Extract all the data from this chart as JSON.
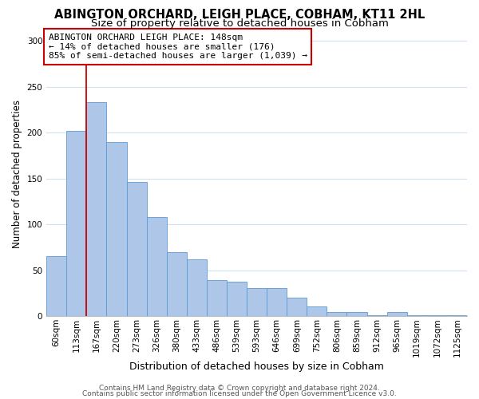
{
  "title1": "ABINGTON ORCHARD, LEIGH PLACE, COBHAM, KT11 2HL",
  "title2": "Size of property relative to detached houses in Cobham",
  "xlabel": "Distribution of detached houses by size in Cobham",
  "ylabel": "Number of detached properties",
  "bar_labels": [
    "60sqm",
    "113sqm",
    "167sqm",
    "220sqm",
    "273sqm",
    "326sqm",
    "380sqm",
    "433sqm",
    "486sqm",
    "539sqm",
    "593sqm",
    "646sqm",
    "699sqm",
    "752sqm",
    "806sqm",
    "859sqm",
    "912sqm",
    "965sqm",
    "1019sqm",
    "1072sqm",
    "1125sqm"
  ],
  "bar_values": [
    65,
    202,
    233,
    190,
    146,
    108,
    70,
    62,
    39,
    37,
    30,
    30,
    20,
    10,
    4,
    4,
    1,
    4,
    1,
    1,
    1
  ],
  "bar_color": "#aec6e8",
  "bar_edge_color": "#5a9bd5",
  "vline_x_idx": 2,
  "vline_color": "#cc0000",
  "annotation_line1": "ABINGTON ORCHARD LEIGH PLACE: 148sqm",
  "annotation_line2": "← 14% of detached houses are smaller (176)",
  "annotation_line3": "85% of semi-detached houses are larger (1,039) →",
  "annotation_box_color": "#ffffff",
  "annotation_box_edge": "#cc0000",
  "ylim": [
    0,
    310
  ],
  "yticks": [
    0,
    50,
    100,
    150,
    200,
    250,
    300
  ],
  "footer1": "Contains HM Land Registry data © Crown copyright and database right 2024.",
  "footer2": "Contains public sector information licensed under the Open Government Licence v3.0.",
  "bg_color": "#ffffff",
  "grid_color": "#d0e0f0",
  "title1_fontsize": 10.5,
  "title2_fontsize": 9.5,
  "xlabel_fontsize": 9,
  "ylabel_fontsize": 8.5,
  "tick_fontsize": 7.5,
  "annot_fontsize": 8,
  "footer_fontsize": 6.5
}
